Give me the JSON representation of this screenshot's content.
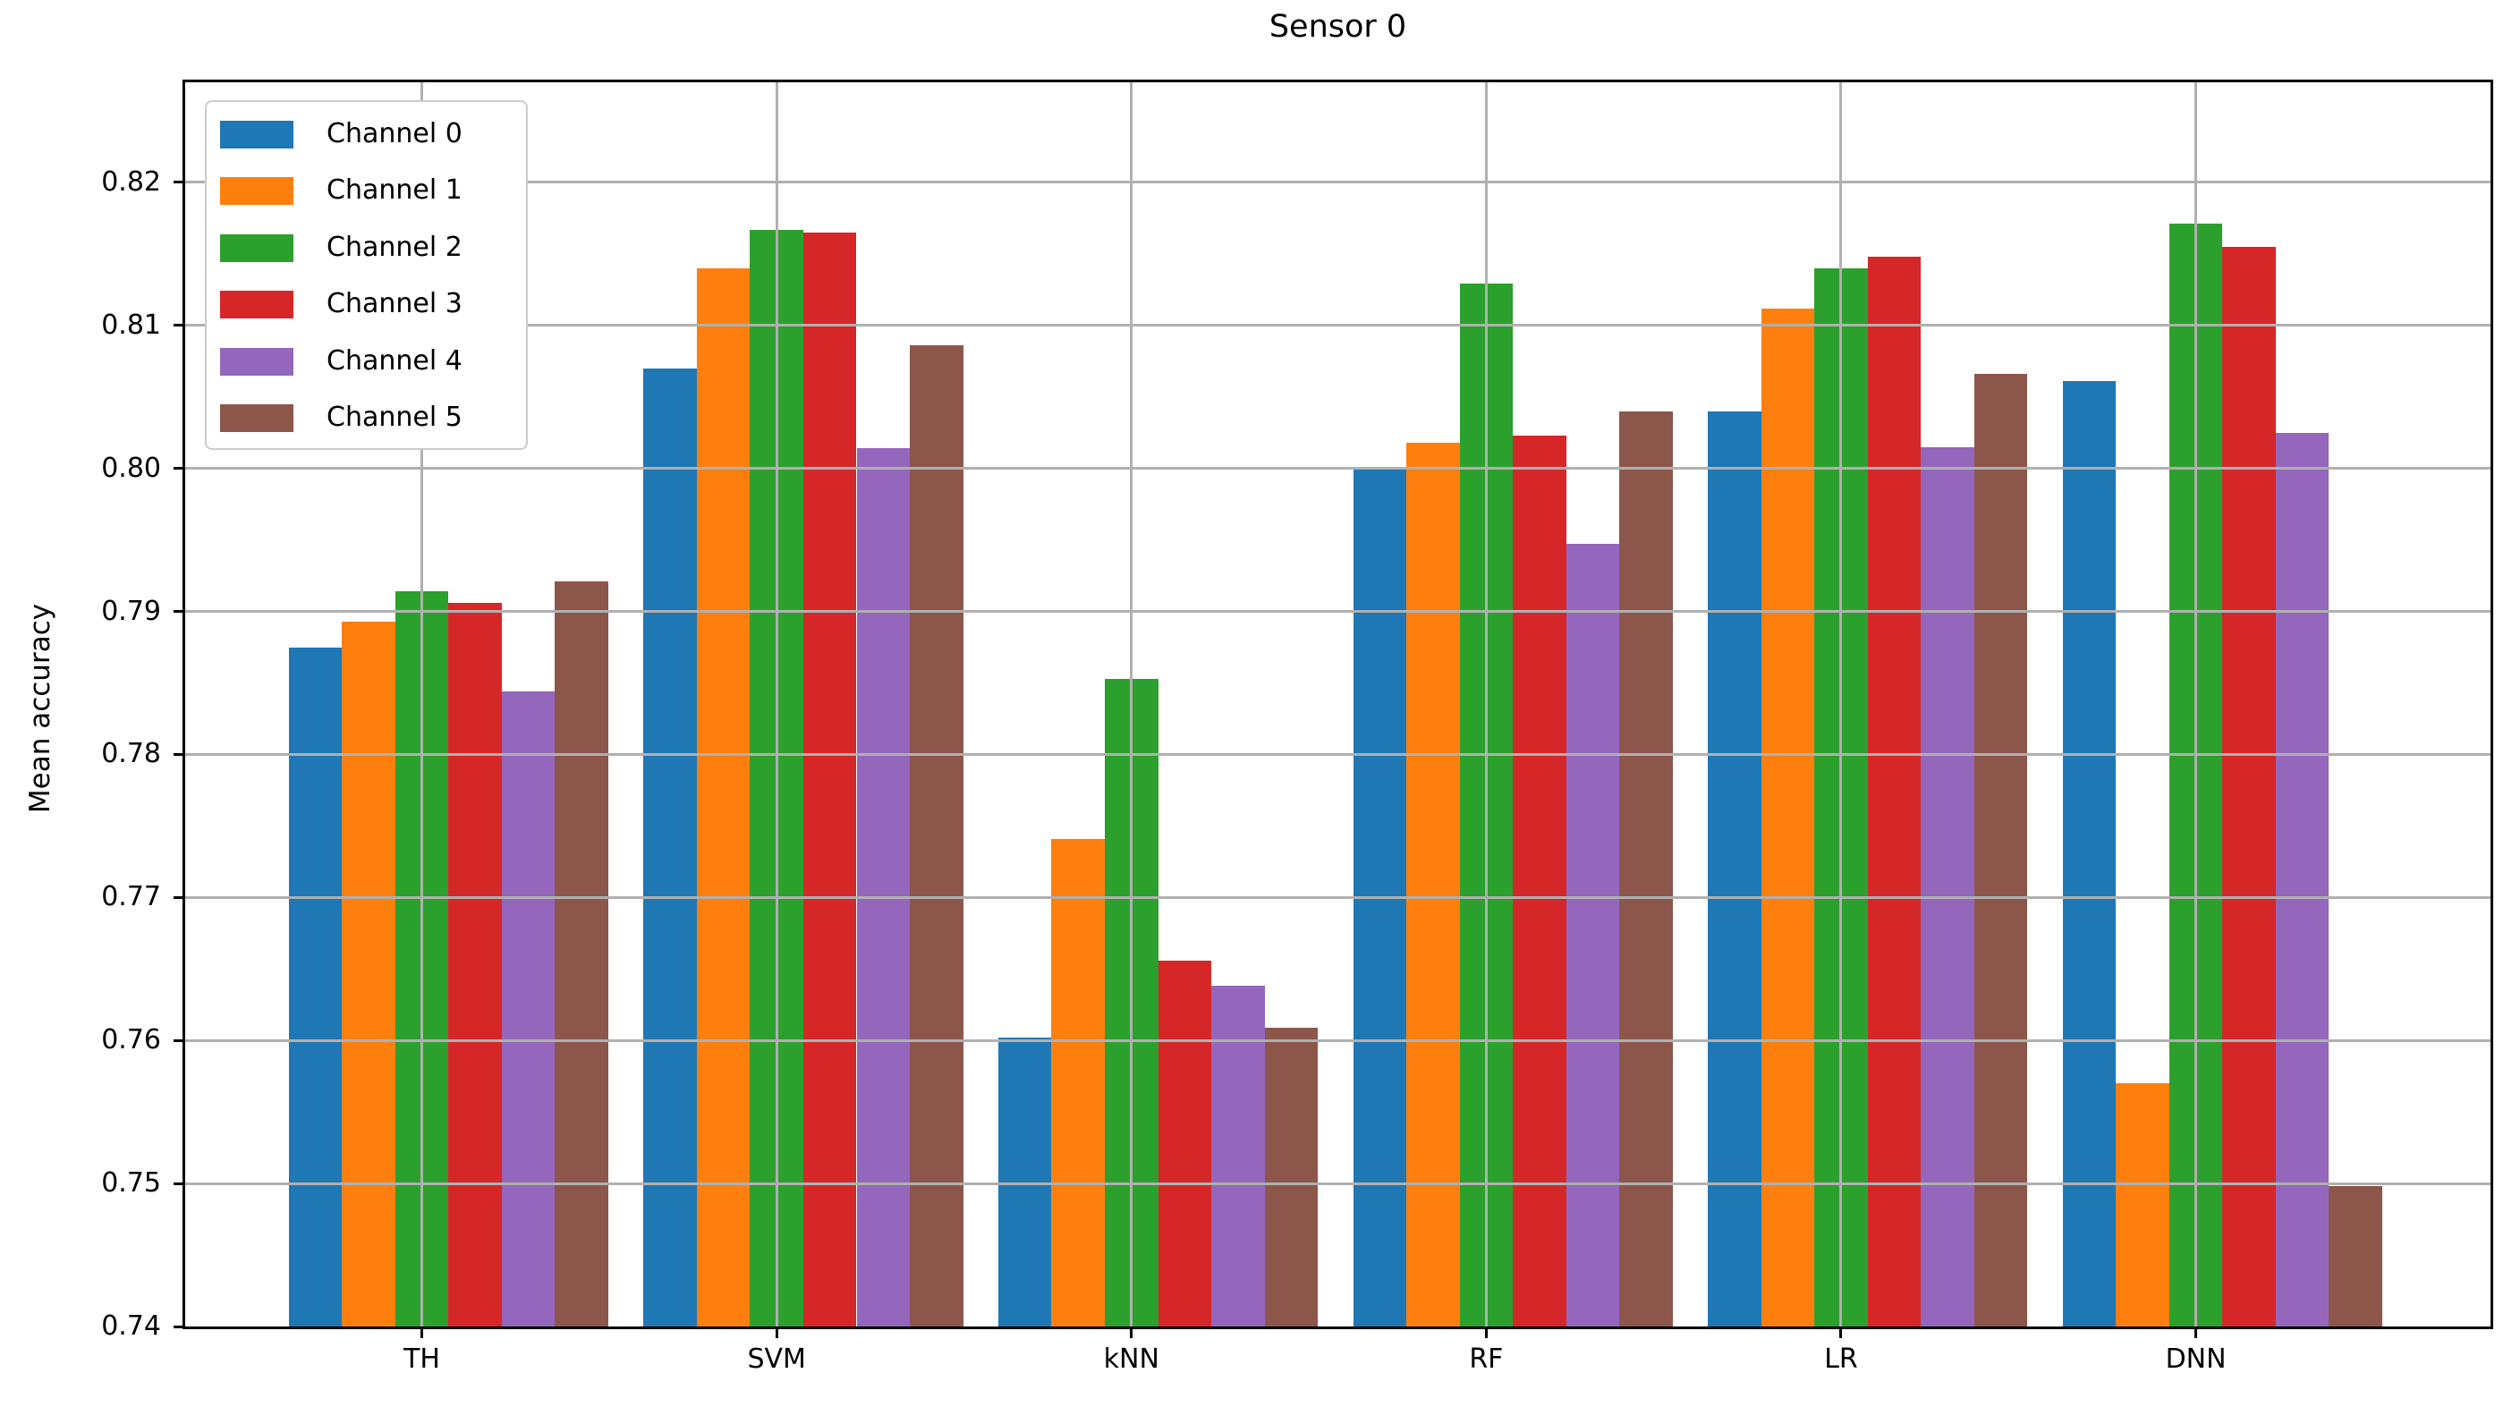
{
  "chart_data": {
    "type": "bar",
    "title": "Sensor 0",
    "xlabel": "",
    "ylabel": "Mean accuracy",
    "categories": [
      "TH",
      "SVM",
      "kNN",
      "RF",
      "LR",
      "DNN"
    ],
    "series": [
      {
        "name": "Channel 0",
        "color": "#1f77b4",
        "values": [
          0.7875,
          0.807,
          0.7602,
          0.7999,
          0.804,
          0.8061
        ]
      },
      {
        "name": "Channel 1",
        "color": "#ff7f0e",
        "values": [
          0.7893,
          0.814,
          0.7741,
          0.8018,
          0.8112,
          0.757
        ]
      },
      {
        "name": "Channel 2",
        "color": "#2ca02c",
        "values": [
          0.7914,
          0.8167,
          0.7853,
          0.8129,
          0.814,
          0.8171
        ]
      },
      {
        "name": "Channel 3",
        "color": "#d62728",
        "values": [
          0.7906,
          0.8165,
          0.7656,
          0.8023,
          0.8148,
          0.8155
        ]
      },
      {
        "name": "Channel 4",
        "color": "#9467bd",
        "values": [
          0.7844,
          0.8014,
          0.7638,
          0.7947,
          0.8015,
          0.8025
        ]
      },
      {
        "name": "Channel 5",
        "color": "#8c564b",
        "values": [
          0.7921,
          0.8086,
          0.7609,
          0.804,
          0.8066,
          0.7498
        ]
      }
    ],
    "ylim": [
      0.74,
      0.827
    ],
    "yticks": [
      0.74,
      0.75,
      0.76,
      0.77,
      0.78,
      0.79,
      0.8,
      0.81,
      0.82
    ],
    "grid": true,
    "legend_position": "upper left"
  }
}
